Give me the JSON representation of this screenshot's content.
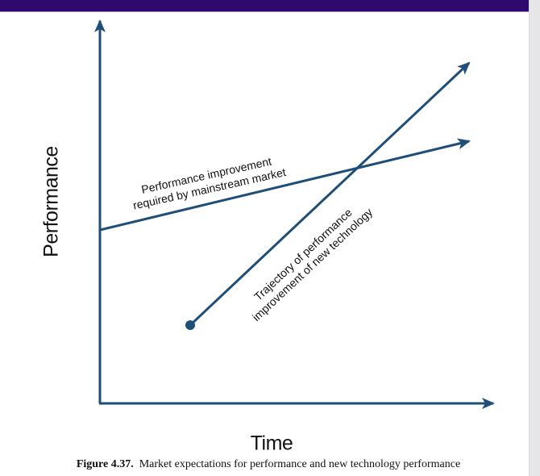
{
  "figure": {
    "y_axis_label": "Performance",
    "x_axis_label": "Time",
    "line_market_label": [
      "Performance improvement",
      "required by mainstream market"
    ],
    "line_technology_label": [
      "Trajectory of performance",
      "improvement of new technology"
    ],
    "caption_number": "Figure 4.37.",
    "caption_text": "Market expectations for performance and new technology performance",
    "line_color": "#1f4e79"
  },
  "chrome": {
    "top_bar_color": "#2e0a6e"
  }
}
